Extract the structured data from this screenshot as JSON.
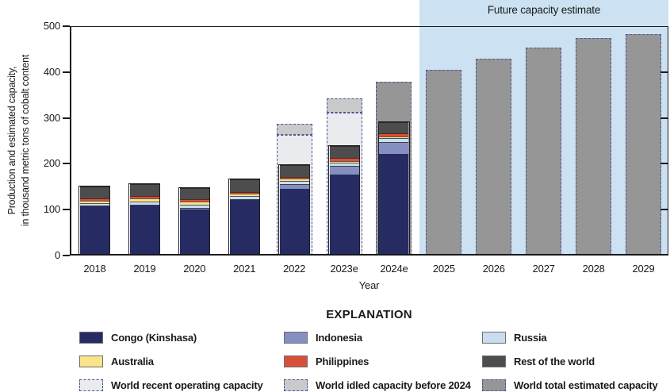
{
  "future_region": {
    "label": "Future capacity estimate"
  },
  "y_axis": {
    "title_line1": "Production and estimated capacity,",
    "title_line2": "in thousand metric tons of cobalt content",
    "ticks": [
      0,
      100,
      200,
      300,
      400,
      500
    ],
    "right_ticks": [
      100,
      200,
      300,
      400
    ],
    "max": 500
  },
  "x_axis": {
    "title": "Year"
  },
  "legend": {
    "heading": "EXPLANATION",
    "items": [
      {
        "label": "Congo (Kinshasa)",
        "swatch": "congo",
        "style": "solid"
      },
      {
        "label": "Indonesia",
        "swatch": "indonesia",
        "style": "solid"
      },
      {
        "label": "Russia",
        "swatch": "russia",
        "style": "solid"
      },
      {
        "label": "Australia",
        "swatch": "australia",
        "style": "solid"
      },
      {
        "label": "Philippines",
        "swatch": "philippines",
        "style": "solid"
      },
      {
        "label": "Rest of the world",
        "swatch": "rest_of_world",
        "style": "solid"
      },
      {
        "label": "World recent operating capacity",
        "swatch": "operating",
        "style": "dashed"
      },
      {
        "label": "World idled capacity before 2024",
        "swatch": "idled",
        "style": "dashed"
      },
      {
        "label": "World total estimated capacity",
        "swatch": "total",
        "style": "dashed"
      }
    ]
  },
  "colors": {
    "congo": "#262b63",
    "indonesia": "#8690c0",
    "russia": "#cadcf0",
    "australia": "#fbe38a",
    "philippines": "#da4f3c",
    "rest_of_world": "#4d4d4d",
    "operating": "#e9ebee",
    "idled": "#c9cacc",
    "total": "#969696",
    "dashed_border": "#4d5490",
    "future_region_bg": "#cce2f2",
    "bar_outline": "#1f1f1f"
  },
  "chart_data": {
    "type": "bar",
    "stacked": true,
    "title": "Future capacity estimate",
    "xlabel": "Year",
    "ylabel": "Production and estimated capacity, in thousand metric tons of cobalt content",
    "ylim": [
      0,
      500
    ],
    "grid": false,
    "legend_position": "bottom",
    "categories": [
      "2018",
      "2019",
      "2020",
      "2021",
      "2022",
      "2023e",
      "2024e",
      "2025",
      "2026",
      "2027",
      "2028",
      "2029"
    ],
    "series": [
      {
        "name": "Congo (Kinshasa)",
        "color_key": "congo",
        "values": [
          108,
          109,
          101,
          121,
          145,
          177,
          222,
          null,
          null,
          null,
          null,
          null
        ]
      },
      {
        "name": "Indonesia",
        "color_key": "indonesia",
        "values": [
          1,
          2,
          2,
          2,
          10,
          18,
          25,
          null,
          null,
          null,
          null,
          null
        ]
      },
      {
        "name": "Russia",
        "color_key": "russia",
        "values": [
          6,
          7,
          8,
          7,
          8,
          7,
          9,
          null,
          null,
          null,
          null,
          null
        ]
      },
      {
        "name": "Australia",
        "color_key": "australia",
        "values": [
          5,
          6,
          6,
          5,
          5,
          4,
          4,
          null,
          null,
          null,
          null,
          null
        ]
      },
      {
        "name": "Philippines",
        "color_key": "philippines",
        "values": [
          5,
          5,
          5,
          4,
          4,
          6,
          6,
          null,
          null,
          null,
          null,
          null
        ]
      },
      {
        "name": "Rest of the world",
        "color_key": "rest_of_world",
        "values": [
          25,
          26,
          25,
          27,
          25,
          26,
          24,
          null,
          null,
          null,
          null,
          null
        ]
      }
    ],
    "stack_totals": [
      150,
      155,
      147,
      166,
      197,
      238,
      290,
      null,
      null,
      null,
      null,
      null
    ],
    "world_recent_operating_capacity": [
      null,
      null,
      null,
      null,
      263,
      312,
      null,
      null,
      null,
      null,
      null,
      null
    ],
    "world_idled_capacity_before_2024_top": [
      null,
      null,
      null,
      null,
      288,
      342,
      null,
      null,
      null,
      null,
      null,
      null
    ],
    "world_total_estimated_capacity": [
      null,
      null,
      null,
      null,
      null,
      null,
      379,
      404,
      429,
      453,
      474,
      482
    ],
    "future_start_category": "2025"
  }
}
